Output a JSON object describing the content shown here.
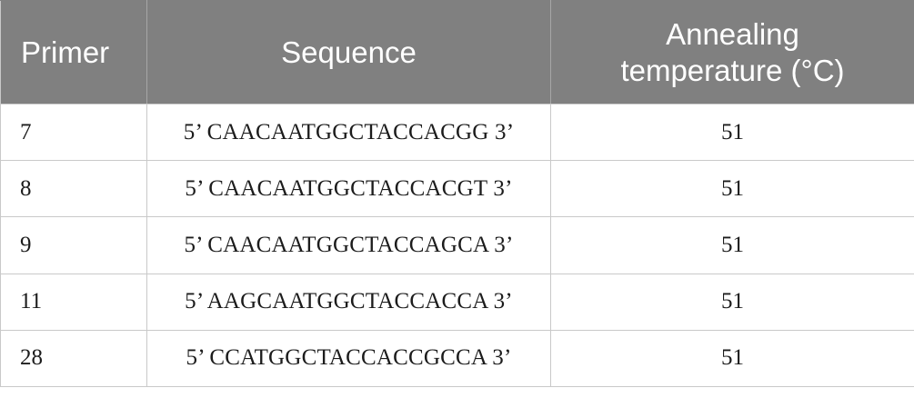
{
  "table": {
    "headers": {
      "primer": "Primer",
      "sequence": "Sequence",
      "temp_line1": "Annealing",
      "temp_line2": "temperature (°C)"
    },
    "rows": [
      {
        "primer": "7",
        "sequence": "5’ CAACAATGGCTACCACGG 3’",
        "temp": "51"
      },
      {
        "primer": "8",
        "sequence": "5’ CAACAATGGCTACCACGT 3’",
        "temp": "51"
      },
      {
        "primer": "9",
        "sequence": "5’ CAACAATGGCTACCAGCA 3’",
        "temp": "51"
      },
      {
        "primer": "11",
        "sequence": "5’ AAGCAATGGCTACCACCA 3’",
        "temp": "51"
      },
      {
        "primer": "28",
        "sequence": "5’ CCATGGCTACCACCGCCA 3’",
        "temp": "51"
      }
    ]
  },
  "colors": {
    "header_bg": "#808080",
    "header_text": "#ffffff",
    "grid": "#c9c9c9"
  }
}
